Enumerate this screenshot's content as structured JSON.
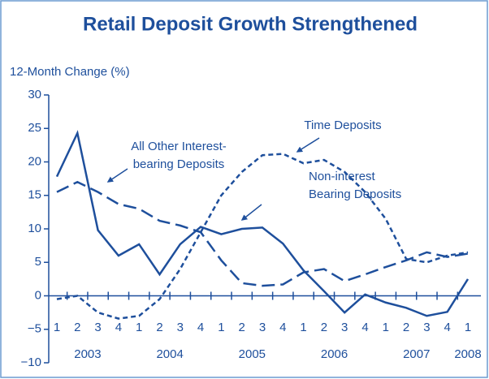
{
  "chart_data": {
    "type": "line",
    "title": "Retail Deposit Growth Strengthened",
    "y_label": "12-Month Change (%)",
    "categories": [
      "1",
      "2",
      "3",
      "4",
      "1",
      "2",
      "3",
      "4",
      "1",
      "2",
      "3",
      "4",
      "1",
      "2",
      "3",
      "4",
      "1",
      "2",
      "3",
      "4",
      "1"
    ],
    "years": [
      "2003",
      "2004",
      "2005",
      "2006",
      "2007",
      "2008"
    ],
    "ylim": [
      -10,
      30
    ],
    "yticks": [
      {
        "value": -10,
        "label": "−10"
      },
      {
        "value": -5,
        "label": "−5"
      },
      0,
      5,
      10,
      15,
      20,
      25,
      30
    ],
    "color": "#1e4f9c",
    "series": [
      {
        "label_lines": [
          "Non-interest",
          "Bearing Deposits"
        ],
        "dash": "solid",
        "values": [
          17.8,
          24.3,
          9.8,
          6.0,
          7.7,
          3.2,
          7.7,
          10.3,
          9.2,
          10.0,
          10.2,
          7.8,
          3.8,
          0.7,
          -2.5,
          0.2,
          -1.0,
          -1.8,
          -3.0,
          -2.4,
          2.5
        ]
      },
      {
        "label_lines": [
          "All Other Interest-",
          "bearing Deposits"
        ],
        "dash": "long",
        "values": [
          15.5,
          17.0,
          15.5,
          13.7,
          13.0,
          11.2,
          10.5,
          9.5,
          5.3,
          1.9,
          1.5,
          1.7,
          3.5,
          4.0,
          2.2,
          3.2,
          4.3,
          5.3,
          6.5,
          5.8,
          6.3
        ]
      },
      {
        "label_lines": [
          "Time Deposits"
        ],
        "dash": "short",
        "values": [
          -0.5,
          0,
          -2.5,
          -3.4,
          -3.0,
          -0.5,
          4.0,
          9.5,
          15.0,
          18.5,
          21.0,
          21.2,
          19.8,
          20.3,
          18.5,
          15.5,
          11.5,
          5.5,
          5.0,
          6.0,
          6.5
        ]
      }
    ]
  }
}
